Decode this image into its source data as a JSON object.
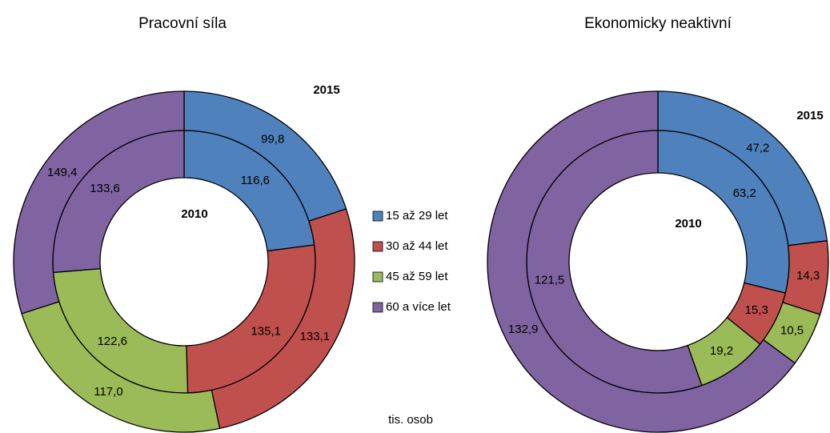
{
  "chart_data": [
    {
      "type": "donut",
      "title": "Pracovní síla",
      "categories": [
        "15 až 29 let",
        "30 až 44 let",
        "45 až 59 let",
        "60 a více let"
      ],
      "colors": [
        "#4f81bd",
        "#c0504d",
        "#9bbb59",
        "#8064a2"
      ],
      "series": [
        {
          "name": "2010",
          "values": [
            116.6,
            135.1,
            122.6,
            133.6
          ],
          "value_labels": [
            "116,6",
            "135,1",
            "122,6",
            "133,6"
          ]
        },
        {
          "name": "2015",
          "values": [
            99.8,
            133.1,
            117.0,
            149.4
          ],
          "value_labels": [
            "99,8",
            "133,1",
            "117,0",
            "149,4"
          ]
        }
      ]
    },
    {
      "type": "donut",
      "title": "Ekonomicky neaktivní",
      "colors": [
        "#4f81bd",
        "#c0504d",
        "#9bbb59",
        "#8064a2"
      ],
      "series": [
        {
          "name": "2010",
          "values": [
            63.2,
            15.3,
            19.2,
            121.5
          ],
          "value_labels": [
            "63,2",
            "15,3",
            "19,2",
            "121,5"
          ]
        },
        {
          "name": "2015",
          "values": [
            47.2,
            14.3,
            10.5,
            132.9
          ],
          "value_labels": [
            "47,2",
            "14,3",
            "10,5",
            "132,9"
          ]
        }
      ]
    }
  ],
  "unit_label": "tis. osob"
}
